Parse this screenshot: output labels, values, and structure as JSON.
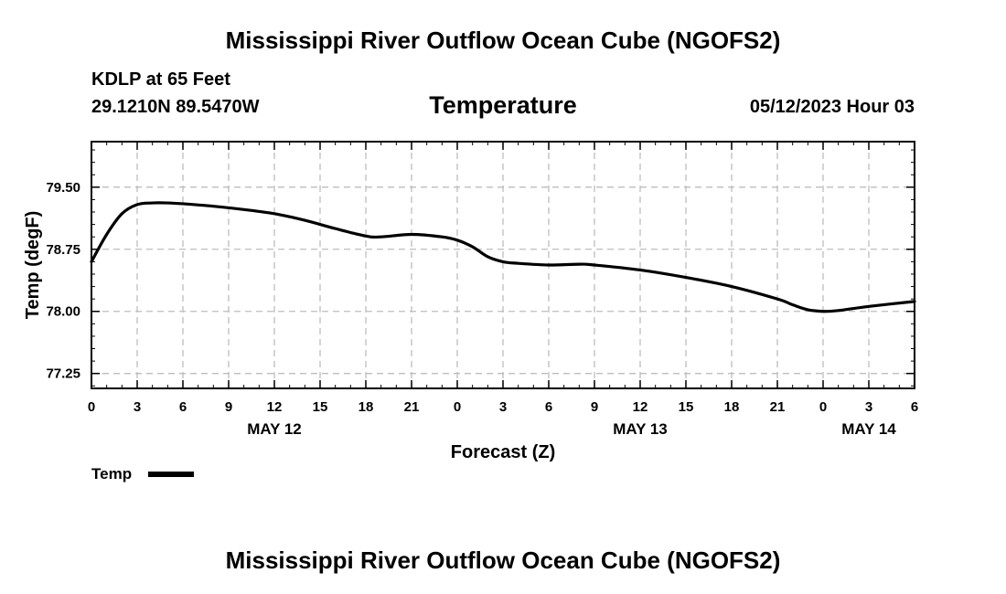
{
  "page": {
    "title": "Mississippi River Outflow Ocean Cube (NGOFS2)",
    "station": "KDLP at 65 Feet",
    "coords": "29.1210N  89.5470W",
    "subtitle": "Temperature",
    "date": "05/12/2023 Hour 03",
    "footer_title": "Mississippi River Outflow Ocean Cube (NGOFS2)"
  },
  "legend": {
    "label": "Temp"
  },
  "chart_data": {
    "type": "line",
    "title": "Temperature",
    "xlabel": "Forecast (Z)",
    "ylabel": "Temp (degF)",
    "xlim": [
      0,
      54
    ],
    "ylim": [
      77.07,
      80.05
    ],
    "grid": true,
    "x_ticks": [
      0,
      3,
      6,
      9,
      12,
      15,
      18,
      21,
      24,
      27,
      30,
      33,
      36,
      39,
      42,
      45,
      48,
      51,
      54
    ],
    "x_tick_labels": [
      "0",
      "3",
      "6",
      "9",
      "12",
      "15",
      "18",
      "21",
      "0",
      "3",
      "6",
      "9",
      "12",
      "15",
      "18",
      "21",
      "0",
      "3",
      "6"
    ],
    "y_ticks": [
      77.25,
      78.0,
      78.75,
      79.5
    ],
    "y_tick_labels": [
      "77.25",
      "78.00",
      "78.75",
      "79.50"
    ],
    "day_labels": [
      {
        "x": 12,
        "label": "MAY 12"
      },
      {
        "x": 36,
        "label": "MAY 13"
      },
      {
        "x": 51,
        "label": "MAY 14"
      }
    ],
    "series": [
      {
        "name": "Temp",
        "x": [
          0,
          1,
          2,
          3,
          4,
          5,
          6,
          8,
          10,
          12,
          14,
          16,
          18,
          19,
          21,
          23,
          24,
          25,
          26,
          27,
          28,
          30,
          32,
          33,
          36,
          39,
          42,
          45,
          46,
          47,
          48,
          49,
          51,
          54
        ],
        "values": [
          78.6,
          78.93,
          79.18,
          79.29,
          79.31,
          79.31,
          79.3,
          79.27,
          79.23,
          79.18,
          79.1,
          79.0,
          78.91,
          78.9,
          78.93,
          78.9,
          78.86,
          78.78,
          78.66,
          78.6,
          78.58,
          78.56,
          78.57,
          78.56,
          78.5,
          78.41,
          78.3,
          78.15,
          78.08,
          78.02,
          78.0,
          78.01,
          78.06,
          78.12
        ]
      }
    ]
  }
}
